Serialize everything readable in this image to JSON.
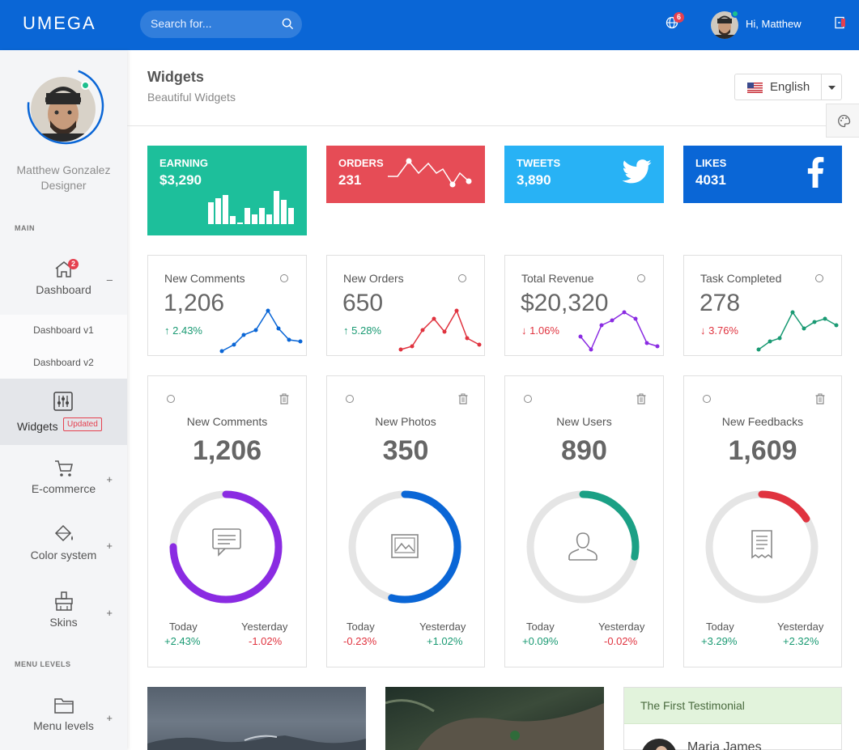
{
  "header": {
    "logo": "UMEGA",
    "search_placeholder": "Search for...",
    "notification_count": "6",
    "greeting": "Hi, Matthew"
  },
  "sidebar": {
    "user_name": "Matthew Gonzalez",
    "user_role": "Designer",
    "section_main": "MAIN",
    "section_levels": "MENU LEVELS",
    "dashboard": {
      "label": "Dashboard",
      "badge": "2",
      "toggle": "–"
    },
    "sub_items": [
      "Dashboard v1",
      "Dashboard v2"
    ],
    "widgets": {
      "label": "Widgets",
      "badge": "Updated"
    },
    "ecommerce": {
      "label": "E-commerce",
      "toggle": "+"
    },
    "color_system": {
      "label": "Color system",
      "toggle": "+"
    },
    "skins": {
      "label": "Skins",
      "toggle": "+"
    },
    "menu_levels": {
      "label": "Menu levels",
      "toggle": "+"
    }
  },
  "page": {
    "title": "Widgets",
    "subtitle": "Beautiful Widgets",
    "language": "English"
  },
  "colored_widgets": [
    {
      "title": "EARNING",
      "value": "$3,290",
      "color": "#1dbf9b"
    },
    {
      "title": "ORDERS",
      "value": "231",
      "color": "#e64c56"
    },
    {
      "title": "TWEETS",
      "value": "3,890",
      "color": "#28b2f5"
    },
    {
      "title": "LIKES",
      "value": "4031",
      "color": "#0a66d6"
    }
  ],
  "stat_cards": [
    {
      "title": "New Comments",
      "value": "1,206",
      "change": "2.43%",
      "dir": "up",
      "color": "#0a66d6"
    },
    {
      "title": "New Orders",
      "value": "650",
      "change": "5.28%",
      "dir": "up",
      "color": "#e0333f"
    },
    {
      "title": "Total Revenue",
      "value": "$20,320",
      "change": "1.06%",
      "dir": "down",
      "color": "#8a2be2"
    },
    {
      "title": "Task Completed",
      "value": "278",
      "change": "3.76%",
      "dir": "down",
      "color": "#1a9a73"
    }
  ],
  "big_cards": [
    {
      "title": "New Comments",
      "value": "1,206",
      "icon": "comment-icon",
      "color": "#8a2be2",
      "progress": 0.75,
      "today_label": "Today",
      "yesterday_label": "Yesterday",
      "today": "+2.43%",
      "yesterday": "-1.02%"
    },
    {
      "title": "New Photos",
      "value": "350",
      "icon": "image-icon",
      "color": "#0a66d6",
      "progress": 0.54,
      "today_label": "Today",
      "yesterday_label": "Yesterday",
      "today": "-0.23%",
      "yesterday": "+1.02%"
    },
    {
      "title": "New Users",
      "value": "890",
      "icon": "user-icon",
      "color": "#1ba085",
      "progress": 0.28,
      "today_label": "Today",
      "yesterday_label": "Yesterday",
      "today": "+0.09%",
      "yesterday": "-0.02%"
    },
    {
      "title": "New Feedbacks",
      "value": "1,609",
      "icon": "receipt-icon",
      "color": "#e0333f",
      "progress": 0.16,
      "today_label": "Today",
      "yesterday_label": "Yesterday",
      "today": "+3.29%",
      "yesterday": "+2.32%"
    }
  ],
  "testimonial": {
    "header": "The First Testimonial",
    "name": "Maria James"
  }
}
